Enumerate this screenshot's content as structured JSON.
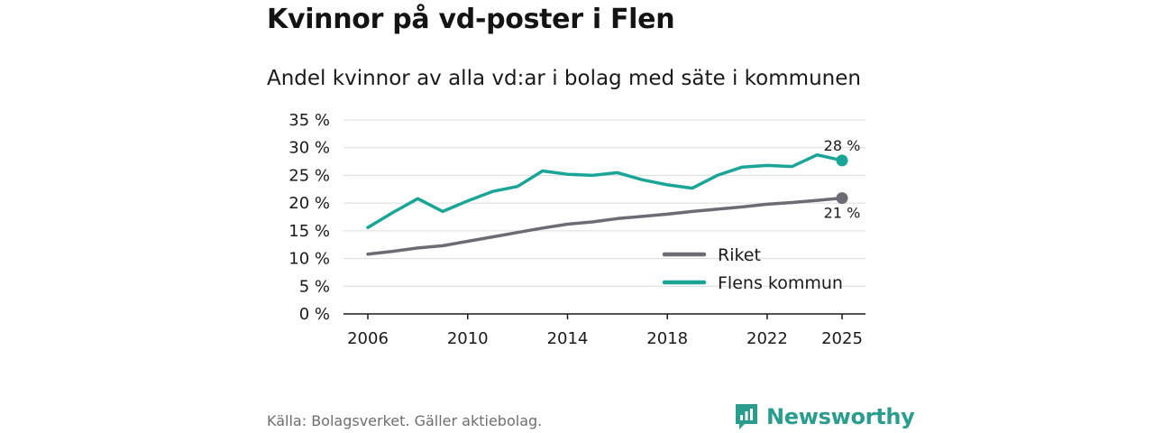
{
  "title": "Kvinnor på vd-poster i Flen",
  "subtitle": "Andel kvinnor av alla vd:ar i bolag med säte i kommunen",
  "source": "Källa: Bolagsverket. Gäller aktiebolag.",
  "brand": {
    "name": "Newsworthy",
    "icon": "newsworthy-logo-icon",
    "color": "#2a9d8f"
  },
  "chart_data": {
    "type": "line",
    "title": "Andel kvinnor av alla vd:ar i bolag med säte i kommunen",
    "xlabel": "",
    "ylabel": "",
    "x": [
      2006,
      2007,
      2008,
      2009,
      2010,
      2011,
      2012,
      2013,
      2014,
      2015,
      2016,
      2017,
      2018,
      2019,
      2020,
      2021,
      2022,
      2023,
      2024,
      2025
    ],
    "xticks": [
      "2006",
      "2010",
      "2014",
      "2018",
      "2022",
      "2025"
    ],
    "ylim": [
      0,
      35
    ],
    "yticks": [
      "0 %",
      "5 %",
      "10 %",
      "15 %",
      "20 %",
      "25 %",
      "30 %",
      "35 %"
    ],
    "grid": true,
    "legend_position": "bottom-right",
    "series": [
      {
        "name": "Riket",
        "color": "#6d6c75",
        "values": [
          10.8,
          11.3,
          11.9,
          12.3,
          13.1,
          13.9,
          14.7,
          15.5,
          16.2,
          16.6,
          17.2,
          17.6,
          18.0,
          18.5,
          18.9,
          19.3,
          19.8,
          20.1,
          20.5,
          20.9
        ],
        "end_label": "21 %"
      },
      {
        "name": "Flens kommun",
        "color": "#1ba597",
        "values": [
          15.6,
          18.3,
          20.8,
          18.5,
          20.4,
          22.1,
          23.0,
          25.8,
          25.2,
          25.0,
          25.5,
          24.2,
          23.3,
          22.7,
          25.0,
          26.5,
          26.8,
          26.6,
          28.7,
          27.7
        ],
        "end_label": "28 %"
      }
    ]
  }
}
